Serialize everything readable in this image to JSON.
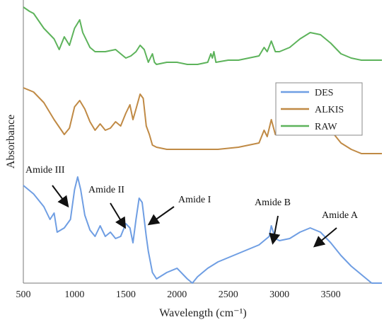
{
  "chart_data": {
    "type": "line",
    "xlabel": "Wavelength (cm⁻¹)",
    "ylabel": "Absorbance",
    "xlim": [
      500,
      4000
    ],
    "x_ticks": [
      500,
      1000,
      1500,
      2000,
      2500,
      3000,
      3500
    ],
    "grid": false,
    "legend_position": "right",
    "series": [
      {
        "name": "DES",
        "color": "#6f9ee3",
        "points": [
          [
            500,
            0.46
          ],
          [
            600,
            0.42
          ],
          [
            700,
            0.36
          ],
          [
            760,
            0.3
          ],
          [
            800,
            0.33
          ],
          [
            830,
            0.24
          ],
          [
            900,
            0.26
          ],
          [
            960,
            0.3
          ],
          [
            1000,
            0.44
          ],
          [
            1030,
            0.5
          ],
          [
            1060,
            0.44
          ],
          [
            1100,
            0.32
          ],
          [
            1150,
            0.25
          ],
          [
            1200,
            0.22
          ],
          [
            1250,
            0.27
          ],
          [
            1300,
            0.22
          ],
          [
            1350,
            0.24
          ],
          [
            1400,
            0.21
          ],
          [
            1450,
            0.22
          ],
          [
            1500,
            0.28
          ],
          [
            1540,
            0.26
          ],
          [
            1570,
            0.19
          ],
          [
            1600,
            0.3
          ],
          [
            1630,
            0.4
          ],
          [
            1660,
            0.38
          ],
          [
            1700,
            0.22
          ],
          [
            1720,
            0.15
          ],
          [
            1760,
            0.05
          ],
          [
            1800,
            0.02
          ],
          [
            1900,
            0.05
          ],
          [
            2000,
            0.07
          ],
          [
            2060,
            0.04
          ],
          [
            2100,
            0.02
          ],
          [
            2150,
            0.0
          ],
          [
            2200,
            0.03
          ],
          [
            2300,
            0.07
          ],
          [
            2400,
            0.1
          ],
          [
            2500,
            0.12
          ],
          [
            2600,
            0.14
          ],
          [
            2700,
            0.16
          ],
          [
            2800,
            0.18
          ],
          [
            2850,
            0.2
          ],
          [
            2900,
            0.22
          ],
          [
            2920,
            0.27
          ],
          [
            2960,
            0.21
          ],
          [
            3000,
            0.2
          ],
          [
            3100,
            0.21
          ],
          [
            3200,
            0.24
          ],
          [
            3300,
            0.26
          ],
          [
            3400,
            0.24
          ],
          [
            3500,
            0.19
          ],
          [
            3600,
            0.13
          ],
          [
            3700,
            0.08
          ],
          [
            3800,
            0.04
          ],
          [
            3900,
            0.0
          ],
          [
            4000,
            0.0
          ]
        ]
      },
      {
        "name": "ALKIS",
        "color": "#c08a45",
        "points": [
          [
            500,
            0.92
          ],
          [
            600,
            0.9
          ],
          [
            700,
            0.85
          ],
          [
            800,
            0.77
          ],
          [
            900,
            0.7
          ],
          [
            950,
            0.73
          ],
          [
            1000,
            0.83
          ],
          [
            1050,
            0.86
          ],
          [
            1100,
            0.82
          ],
          [
            1150,
            0.76
          ],
          [
            1200,
            0.72
          ],
          [
            1250,
            0.75
          ],
          [
            1300,
            0.72
          ],
          [
            1350,
            0.73
          ],
          [
            1400,
            0.76
          ],
          [
            1450,
            0.74
          ],
          [
            1500,
            0.8
          ],
          [
            1540,
            0.84
          ],
          [
            1570,
            0.77
          ],
          [
            1600,
            0.82
          ],
          [
            1640,
            0.89
          ],
          [
            1670,
            0.87
          ],
          [
            1700,
            0.74
          ],
          [
            1730,
            0.7
          ],
          [
            1760,
            0.65
          ],
          [
            1800,
            0.64
          ],
          [
            1900,
            0.63
          ],
          [
            2000,
            0.63
          ],
          [
            2200,
            0.63
          ],
          [
            2400,
            0.63
          ],
          [
            2600,
            0.64
          ],
          [
            2800,
            0.66
          ],
          [
            2850,
            0.72
          ],
          [
            2880,
            0.69
          ],
          [
            2920,
            0.77
          ],
          [
            2960,
            0.7
          ],
          [
            3000,
            0.71
          ],
          [
            3100,
            0.74
          ],
          [
            3200,
            0.77
          ],
          [
            3300,
            0.8
          ],
          [
            3400,
            0.78
          ],
          [
            3500,
            0.72
          ],
          [
            3600,
            0.66
          ],
          [
            3700,
            0.63
          ],
          [
            3800,
            0.61
          ],
          [
            4000,
            0.61
          ]
        ]
      },
      {
        "name": "RAW",
        "color": "#5db35b",
        "points": [
          [
            500,
            1.3
          ],
          [
            560,
            1.28
          ],
          [
            600,
            1.27
          ],
          [
            700,
            1.2
          ],
          [
            800,
            1.15
          ],
          [
            850,
            1.1
          ],
          [
            900,
            1.16
          ],
          [
            950,
            1.12
          ],
          [
            1000,
            1.2
          ],
          [
            1050,
            1.24
          ],
          [
            1080,
            1.18
          ],
          [
            1100,
            1.16
          ],
          [
            1150,
            1.11
          ],
          [
            1200,
            1.09
          ],
          [
            1300,
            1.09
          ],
          [
            1400,
            1.1
          ],
          [
            1450,
            1.08
          ],
          [
            1500,
            1.06
          ],
          [
            1550,
            1.07
          ],
          [
            1600,
            1.09
          ],
          [
            1640,
            1.12
          ],
          [
            1680,
            1.1
          ],
          [
            1700,
            1.07
          ],
          [
            1720,
            1.04
          ],
          [
            1760,
            1.08
          ],
          [
            1780,
            1.04
          ],
          [
            1800,
            1.03
          ],
          [
            1900,
            1.04
          ],
          [
            2000,
            1.04
          ],
          [
            2100,
            1.03
          ],
          [
            2200,
            1.03
          ],
          [
            2300,
            1.04
          ],
          [
            2330,
            1.08
          ],
          [
            2345,
            1.06
          ],
          [
            2360,
            1.09
          ],
          [
            2380,
            1.04
          ],
          [
            2500,
            1.05
          ],
          [
            2600,
            1.05
          ],
          [
            2700,
            1.06
          ],
          [
            2800,
            1.07
          ],
          [
            2850,
            1.11
          ],
          [
            2880,
            1.09
          ],
          [
            2920,
            1.14
          ],
          [
            2960,
            1.09
          ],
          [
            3000,
            1.09
          ],
          [
            3100,
            1.11
          ],
          [
            3200,
            1.15
          ],
          [
            3300,
            1.18
          ],
          [
            3400,
            1.17
          ],
          [
            3500,
            1.13
          ],
          [
            3600,
            1.08
          ],
          [
            3700,
            1.06
          ],
          [
            3800,
            1.05
          ],
          [
            4000,
            1.05
          ]
        ]
      }
    ],
    "annotations": [
      {
        "text": "Amide III",
        "x": 960,
        "y": 0.5
      },
      {
        "text": "Amide II",
        "x": 1530,
        "y": 0.35
      },
      {
        "text": "Amide I",
        "x": 1680,
        "y": 0.43
      },
      {
        "text": "Amide B",
        "x": 2930,
        "y": 0.3
      },
      {
        "text": "Amide A",
        "x": 3370,
        "y": 0.28
      }
    ]
  }
}
